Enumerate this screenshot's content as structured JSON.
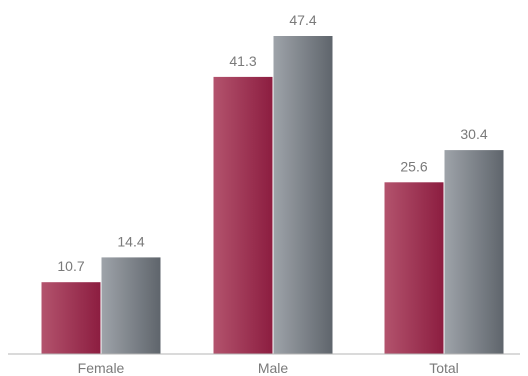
{
  "chart_data": {
    "type": "bar",
    "categories": [
      "Female",
      "Male",
      "Total"
    ],
    "series": [
      {
        "values": [
          10.7,
          41.3,
          25.6
        ],
        "color": "#8c1d40"
      },
      {
        "values": [
          14.4,
          47.4,
          30.4
        ],
        "color": "#6b7178"
      }
    ],
    "ylim": [
      0,
      47.4
    ],
    "grid": false,
    "legend": "none",
    "xlabel": "",
    "ylabel": "",
    "title": ""
  }
}
